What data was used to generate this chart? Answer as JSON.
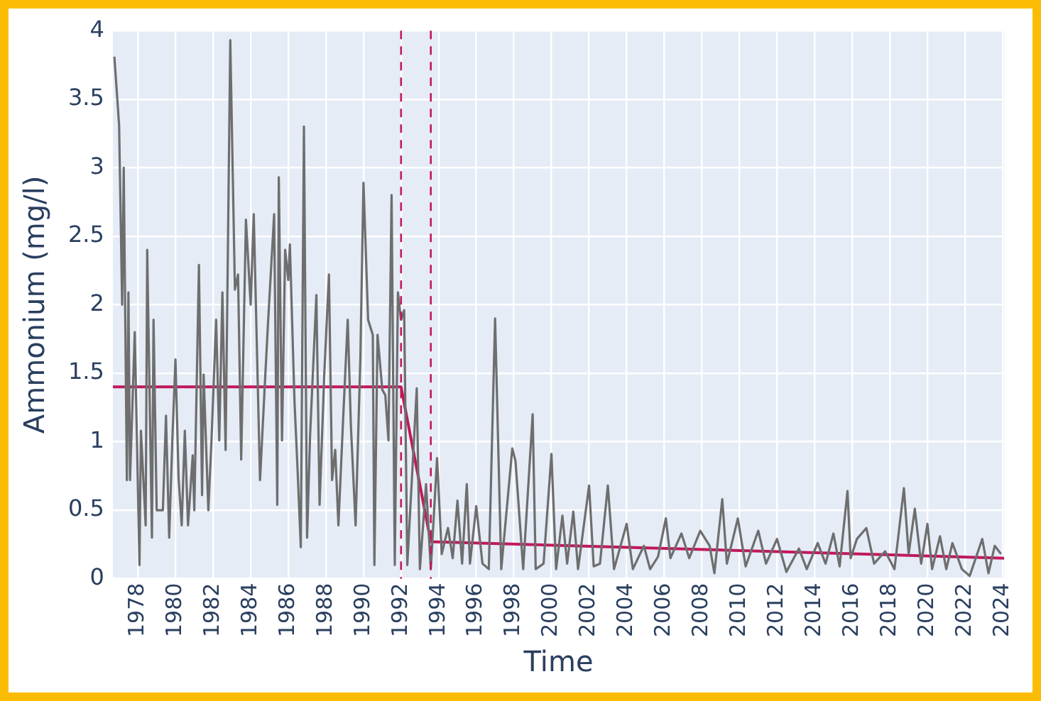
{
  "chart_data": {
    "type": "line",
    "xlabel": "Time",
    "ylabel": "Ammonium (mg/l)",
    "xlim": [
      "1976-09",
      "2024-02"
    ],
    "ylim": [
      0,
      4
    ],
    "xticks": [
      "1978",
      "1980",
      "1982",
      "1984",
      "1986",
      "1988",
      "1990",
      "1992",
      "1994",
      "1996",
      "1998",
      "2000",
      "2002",
      "2004",
      "2006",
      "2008",
      "2010",
      "2012",
      "2014",
      "2016",
      "2018",
      "2020",
      "2022",
      "2024"
    ],
    "yticks": [
      0,
      0.5,
      1,
      1.5,
      2,
      2.5,
      3,
      3.5,
      4
    ],
    "grid": true,
    "legend": false,
    "marker": "none",
    "series": [
      {
        "color": "#6e6e6e",
        "x": [
          "1976-10",
          "1977-01",
          "1977-03",
          "1977-04",
          "1977-06",
          "1977-07",
          "1977-08",
          "1977-11",
          "1978-02",
          "1978-03",
          "1978-06",
          "1978-07",
          "1978-10",
          "1978-11",
          "1979-01",
          "1979-05",
          "1979-07",
          "1979-09",
          "1979-11",
          "1980-01",
          "1980-03",
          "1980-05",
          "1980-07",
          "1980-09",
          "1980-12",
          "1981-01",
          "1981-04",
          "1981-06",
          "1981-07",
          "1981-10",
          "1981-12",
          "1982-03",
          "1982-05",
          "1982-07",
          "1982-09",
          "1982-12",
          "1983-03",
          "1983-05",
          "1983-07",
          "1983-10",
          "1984-01",
          "1984-03",
          "1984-07",
          "1984-10",
          "1984-12",
          "1985-04",
          "1985-06",
          "1985-07",
          "1985-09",
          "1985-11",
          "1986-01",
          "1986-02",
          "1986-05",
          "1986-07",
          "1986-09",
          "1986-11",
          "1987-01",
          "1987-03",
          "1987-07",
          "1987-09",
          "1987-12",
          "1988-03",
          "1988-05",
          "1988-07",
          "1988-09",
          "1988-12",
          "1989-03",
          "1989-05",
          "1989-08",
          "1989-11",
          "1990-01",
          "1990-04",
          "1990-07",
          "1990-08",
          "1990-10",
          "1991-01",
          "1991-03",
          "1991-05",
          "1991-07",
          "1991-09",
          "1991-11",
          "1992-01",
          "1992-03",
          "1992-05",
          "1992-11",
          "1993-01",
          "1993-05",
          "1993-08",
          "1993-12",
          "1994-03",
          "1994-07",
          "1994-10",
          "1995-01",
          "1995-04",
          "1995-07",
          "1995-09",
          "1996-01",
          "1996-05",
          "1996-09",
          "1997-01",
          "1997-05",
          "1997-12",
          "1998-02",
          "1998-07",
          "1999-01",
          "1999-03",
          "1999-08",
          "2000-01",
          "2000-04",
          "2000-08",
          "2000-11",
          "2001-03",
          "2001-06",
          "2002-01",
          "2002-04",
          "2002-08",
          "2003-01",
          "2003-05",
          "2004-01",
          "2004-05",
          "2004-12",
          "2005-04",
          "2005-09",
          "2006-02",
          "2006-05",
          "2006-12",
          "2007-05",
          "2007-12",
          "2008-06",
          "2008-09",
          "2009-02",
          "2009-05",
          "2009-12",
          "2010-05",
          "2011-01",
          "2011-06",
          "2012-01",
          "2012-07",
          "2013-03",
          "2013-08",
          "2014-03",
          "2014-08",
          "2015-01",
          "2015-05",
          "2015-10",
          "2015-12",
          "2016-04",
          "2016-10",
          "2017-03",
          "2017-10",
          "2018-04",
          "2018-10",
          "2019-01",
          "2019-05",
          "2019-09",
          "2020-01",
          "2020-04",
          "2020-09",
          "2021-01",
          "2021-05",
          "2021-11",
          "2022-04",
          "2022-12",
          "2023-04",
          "2023-08",
          "2023-12"
        ],
        "values": [
          3.81,
          3.31,
          2.0,
          3.0,
          0.72,
          2.09,
          0.72,
          1.8,
          0.1,
          1.08,
          0.39,
          2.4,
          0.3,
          1.89,
          0.5,
          0.5,
          1.19,
          0.3,
          1.01,
          1.6,
          0.74,
          0.39,
          1.08,
          0.39,
          0.9,
          0.5,
          2.29,
          0.61,
          1.49,
          0.5,
          1.01,
          1.89,
          1.01,
          2.09,
          0.94,
          3.93,
          2.11,
          2.22,
          0.87,
          2.62,
          2.0,
          2.66,
          0.72,
          1.41,
          1.85,
          2.66,
          0.54,
          2.93,
          1.01,
          2.4,
          2.18,
          2.44,
          1.3,
          0.79,
          0.23,
          3.3,
          0.3,
          1.05,
          2.07,
          0.54,
          1.49,
          2.22,
          0.72,
          0.94,
          0.39,
          1.16,
          1.89,
          1.12,
          0.39,
          1.6,
          2.89,
          1.89,
          1.78,
          0.1,
          1.78,
          1.38,
          1.34,
          1.01,
          2.8,
          0.1,
          2.09,
          1.89,
          1.96,
          0.1,
          1.39,
          0.07,
          0.69,
          0.07,
          0.88,
          0.18,
          0.37,
          0.15,
          0.57,
          0.11,
          0.69,
          0.11,
          0.53,
          0.11,
          0.07,
          1.9,
          0.07,
          0.95,
          0.86,
          0.07,
          1.2,
          0.07,
          0.11,
          0.91,
          0.07,
          0.46,
          0.11,
          0.49,
          0.07,
          0.68,
          0.09,
          0.11,
          0.68,
          0.07,
          0.4,
          0.07,
          0.24,
          0.07,
          0.16,
          0.44,
          0.15,
          0.33,
          0.15,
          0.35,
          0.24,
          0.04,
          0.58,
          0.11,
          0.44,
          0.09,
          0.35,
          0.11,
          0.29,
          0.05,
          0.22,
          0.07,
          0.26,
          0.11,
          0.33,
          0.09,
          0.64,
          0.15,
          0.29,
          0.37,
          0.11,
          0.2,
          0.07,
          0.66,
          0.18,
          0.51,
          0.11,
          0.4,
          0.07,
          0.31,
          0.07,
          0.26,
          0.07,
          0.02,
          0.29,
          0.04,
          0.24,
          0.18
        ]
      },
      {
        "color": "#c2185b",
        "x": [
          "1976-09",
          "1992-01",
          "1993-08",
          "2024-02"
        ],
        "values": [
          1.4,
          1.4,
          0.27,
          0.15
        ]
      }
    ],
    "ref_lines": [
      {
        "axis": "x",
        "value": "1992-01",
        "color": "#c2185b",
        "line_style": "dashed"
      },
      {
        "axis": "x",
        "value": "1993-08",
        "color": "#c2185b",
        "line_style": "dashed"
      }
    ]
  }
}
